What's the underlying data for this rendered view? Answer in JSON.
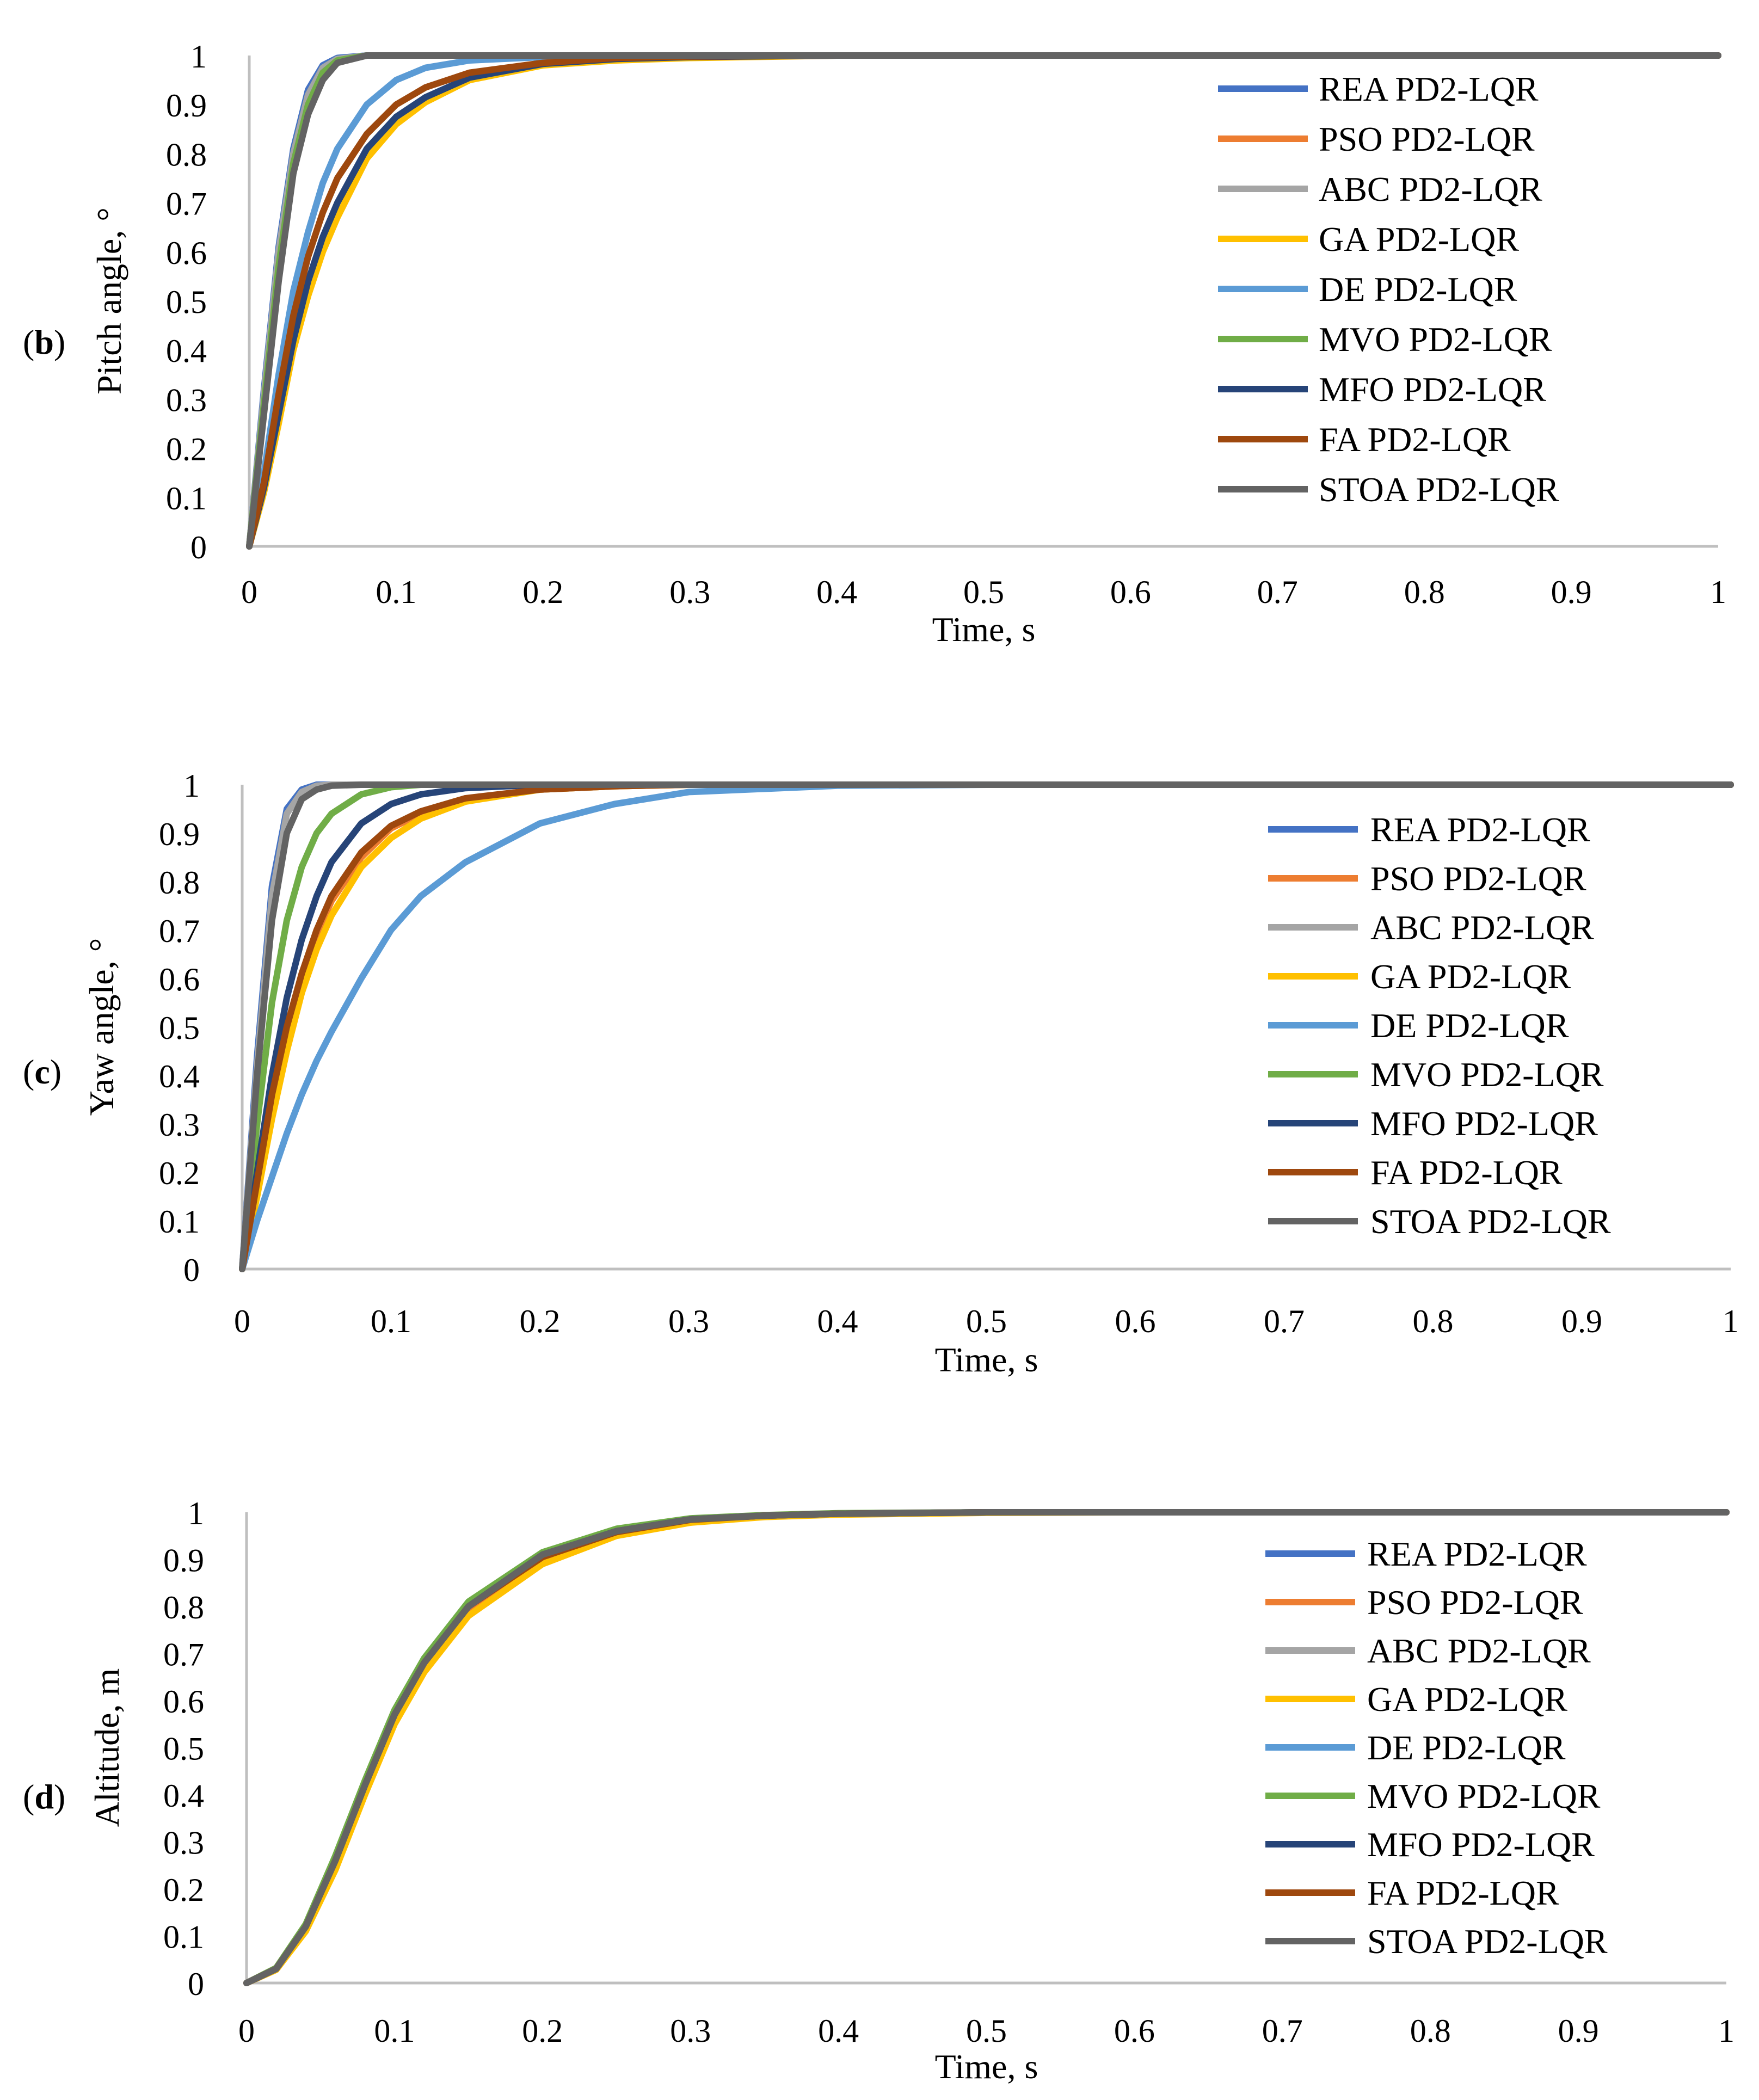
{
  "figure": {
    "panels": [
      {
        "open": "(",
        "letter": "b",
        "close": ")"
      },
      {
        "open": "(",
        "letter": "c",
        "close": ")"
      },
      {
        "open": "(",
        "letter": "d",
        "close": ")"
      }
    ]
  },
  "chart_data": [
    {
      "type": "line",
      "title": "",
      "xlabel": "Time, s",
      "ylabel": "Pitch angle, °",
      "xlim": [
        0,
        1
      ],
      "ylim": [
        0,
        1
      ],
      "x_ticks": [
        "0",
        "0.1",
        "0.2",
        "0.3",
        "0.4",
        "0.5",
        "0.6",
        "0.7",
        "0.8",
        "0.9",
        "1"
      ],
      "y_ticks": [
        "0",
        "0.1",
        "0.2",
        "0.3",
        "0.4",
        "0.5",
        "0.6",
        "0.7",
        "0.8",
        "0.9",
        "1"
      ],
      "legend_position": "right",
      "x": [
        0,
        0.01,
        0.02,
        0.03,
        0.04,
        0.05,
        0.06,
        0.08,
        0.1,
        0.12,
        0.15,
        0.2,
        0.25,
        0.3,
        0.4,
        0.5,
        0.6,
        0.7,
        0.8,
        0.9,
        1
      ],
      "series": [
        {
          "name": "REA PD2-LQR",
          "color": "#4472c4",
          "values": [
            0,
            0.32,
            0.61,
            0.81,
            0.93,
            0.98,
            0.995,
            1,
            1,
            1,
            1,
            1,
            1,
            1,
            1,
            1,
            1,
            1,
            1,
            1,
            1
          ]
        },
        {
          "name": "PSO PD2-LQR",
          "color": "#ed7d31",
          "values": [
            0,
            0.3,
            0.58,
            0.79,
            0.91,
            0.97,
            0.99,
            1,
            1,
            1,
            1,
            1,
            1,
            1,
            1,
            1,
            1,
            1,
            1,
            1,
            1
          ]
        },
        {
          "name": "ABC PD2-LQR",
          "color": "#a5a5a5",
          "values": [
            0,
            0.31,
            0.6,
            0.8,
            0.92,
            0.975,
            0.993,
            1,
            1,
            1,
            1,
            1,
            1,
            1,
            1,
            1,
            1,
            1,
            1,
            1,
            1
          ]
        },
        {
          "name": "GA PD2-LQR",
          "color": "#ffc000",
          "values": [
            0,
            0.11,
            0.25,
            0.4,
            0.51,
            0.6,
            0.67,
            0.79,
            0.86,
            0.905,
            0.95,
            0.98,
            0.99,
            0.995,
            1,
            1,
            1,
            1,
            1,
            1,
            1
          ]
        },
        {
          "name": "DE PD2-LQR",
          "color": "#5b9bd5",
          "values": [
            0,
            0.15,
            0.35,
            0.52,
            0.64,
            0.74,
            0.81,
            0.9,
            0.95,
            0.975,
            0.99,
            0.997,
            1,
            1,
            1,
            1,
            1,
            1,
            1,
            1,
            1
          ]
        },
        {
          "name": "MVO PD2-LQR",
          "color": "#70ad47",
          "values": [
            0,
            0.29,
            0.57,
            0.78,
            0.9,
            0.965,
            0.99,
            1,
            1,
            1,
            1,
            1,
            1,
            1,
            1,
            1,
            1,
            1,
            1,
            1,
            1
          ]
        },
        {
          "name": "MFO PD2-LQR",
          "color": "#264478",
          "values": [
            0,
            0.12,
            0.27,
            0.42,
            0.54,
            0.63,
            0.7,
            0.81,
            0.875,
            0.915,
            0.955,
            0.983,
            0.993,
            0.997,
            1,
            1,
            1,
            1,
            1,
            1,
            1
          ]
        },
        {
          "name": "FA PD2-LQR",
          "color": "#9e480e",
          "values": [
            0,
            0.13,
            0.31,
            0.47,
            0.59,
            0.68,
            0.75,
            0.84,
            0.9,
            0.935,
            0.965,
            0.985,
            0.995,
            0.998,
            1,
            1,
            1,
            1,
            1,
            1,
            1
          ]
        },
        {
          "name": "STOA PD2-LQR",
          "color": "#636363",
          "values": [
            0,
            0.27,
            0.54,
            0.76,
            0.88,
            0.95,
            0.985,
            1,
            1,
            1,
            1,
            1,
            1,
            1,
            1,
            1,
            1,
            1,
            1,
            1,
            1
          ]
        }
      ]
    },
    {
      "type": "line",
      "title": "",
      "xlabel": "Time, s",
      "ylabel": "Yaw angle, °",
      "xlim": [
        0,
        1
      ],
      "ylim": [
        0,
        1
      ],
      "x_ticks": [
        "0",
        "0.1",
        "0.2",
        "0.3",
        "0.4",
        "0.5",
        "0.6",
        "0.7",
        "0.8",
        "0.9",
        "1"
      ],
      "y_ticks": [
        "0",
        "0.1",
        "0.2",
        "0.3",
        "0.4",
        "0.5",
        "0.6",
        "0.7",
        "0.8",
        "0.9",
        "1"
      ],
      "legend_position": "right",
      "x": [
        0,
        0.01,
        0.02,
        0.03,
        0.04,
        0.05,
        0.06,
        0.08,
        0.1,
        0.12,
        0.15,
        0.2,
        0.25,
        0.3,
        0.4,
        0.5,
        0.6,
        0.7,
        0.8,
        0.9,
        1
      ],
      "series": [
        {
          "name": "REA PD2-LQR",
          "color": "#4472c4",
          "values": [
            0,
            0.44,
            0.79,
            0.95,
            0.99,
            1,
            1,
            1,
            1,
            1,
            1,
            1,
            1,
            1,
            1,
            1,
            1,
            1,
            1,
            1,
            1
          ]
        },
        {
          "name": "PSO PD2-LQR",
          "color": "#ed7d31",
          "values": [
            0,
            0.17,
            0.35,
            0.49,
            0.6,
            0.69,
            0.76,
            0.85,
            0.91,
            0.94,
            0.97,
            0.99,
            0.997,
            1,
            1,
            1,
            1,
            1,
            1,
            1,
            1
          ]
        },
        {
          "name": "ABC PD2-LQR",
          "color": "#a5a5a5",
          "values": [
            0,
            0.42,
            0.77,
            0.94,
            0.985,
            0.998,
            1,
            1,
            1,
            1,
            1,
            1,
            1,
            1,
            1,
            1,
            1,
            1,
            1,
            1,
            1
          ]
        },
        {
          "name": "GA PD2-LQR",
          "color": "#ffc000",
          "values": [
            0,
            0.15,
            0.31,
            0.45,
            0.57,
            0.66,
            0.73,
            0.83,
            0.89,
            0.93,
            0.965,
            0.99,
            0.997,
            1,
            1,
            1,
            1,
            1,
            1,
            1,
            1
          ]
        },
        {
          "name": "DE PD2-LQR",
          "color": "#5b9bd5",
          "values": [
            0,
            0.1,
            0.19,
            0.28,
            0.36,
            0.43,
            0.49,
            0.6,
            0.7,
            0.77,
            0.84,
            0.92,
            0.96,
            0.985,
            0.998,
            1,
            1,
            1,
            1,
            1,
            1
          ]
        },
        {
          "name": "MVO PD2-LQR",
          "color": "#70ad47",
          "values": [
            0,
            0.3,
            0.55,
            0.72,
            0.83,
            0.9,
            0.94,
            0.98,
            0.995,
            1,
            1,
            1,
            1,
            1,
            1,
            1,
            1,
            1,
            1,
            1,
            1
          ]
        },
        {
          "name": "MFO PD2-LQR",
          "color": "#264478",
          "values": [
            0,
            0.2,
            0.4,
            0.56,
            0.68,
            0.77,
            0.84,
            0.92,
            0.96,
            0.98,
            0.993,
            1,
            1,
            1,
            1,
            1,
            1,
            1,
            1,
            1,
            1
          ]
        },
        {
          "name": "FA PD2-LQR",
          "color": "#9e480e",
          "values": [
            0,
            0.18,
            0.36,
            0.5,
            0.61,
            0.7,
            0.77,
            0.86,
            0.915,
            0.945,
            0.972,
            0.99,
            0.997,
            1,
            1,
            1,
            1,
            1,
            1,
            1,
            1
          ]
        },
        {
          "name": "STOA PD2-LQR",
          "color": "#636363",
          "values": [
            0,
            0.4,
            0.72,
            0.9,
            0.97,
            0.99,
            0.998,
            1,
            1,
            1,
            1,
            1,
            1,
            1,
            1,
            1,
            1,
            1,
            1,
            1,
            1
          ]
        }
      ]
    },
    {
      "type": "line",
      "title": "",
      "xlabel": "Time, s",
      "ylabel": "Altitude, m",
      "xlim": [
        0,
        1
      ],
      "ylim": [
        0,
        1
      ],
      "x_ticks": [
        "0",
        "0.1",
        "0.2",
        "0.3",
        "0.4",
        "0.5",
        "0.6",
        "0.7",
        "0.8",
        "0.9",
        "1"
      ],
      "y_ticks": [
        "0",
        "0.1",
        "0.2",
        "0.3",
        "0.4",
        "0.5",
        "0.6",
        "0.7",
        "0.8",
        "0.9",
        "1"
      ],
      "legend_position": "right",
      "x": [
        0,
        0.02,
        0.04,
        0.06,
        0.08,
        0.1,
        0.12,
        0.15,
        0.2,
        0.25,
        0.3,
        0.35,
        0.4,
        0.5,
        0.6,
        0.7,
        0.8,
        0.9,
        1
      ],
      "series": [
        {
          "name": "REA PD2-LQR",
          "color": "#4472c4",
          "values": [
            0,
            0.03,
            0.12,
            0.26,
            0.42,
            0.57,
            0.68,
            0.8,
            0.91,
            0.96,
            0.985,
            0.993,
            0.997,
            1,
            1,
            1,
            1,
            1,
            1
          ]
        },
        {
          "name": "PSO PD2-LQR",
          "color": "#ed7d31",
          "values": [
            0,
            0.03,
            0.115,
            0.25,
            0.41,
            0.56,
            0.67,
            0.79,
            0.9,
            0.955,
            0.982,
            0.992,
            0.996,
            1,
            1,
            1,
            1,
            1,
            1
          ]
        },
        {
          "name": "ABC PD2-LQR",
          "color": "#a5a5a5",
          "values": [
            0,
            0.03,
            0.12,
            0.26,
            0.42,
            0.57,
            0.68,
            0.8,
            0.91,
            0.96,
            0.985,
            0.993,
            0.997,
            1,
            1,
            1,
            1,
            1,
            1
          ]
        },
        {
          "name": "GA PD2-LQR",
          "color": "#ffc000",
          "values": [
            0,
            0.028,
            0.11,
            0.24,
            0.4,
            0.55,
            0.66,
            0.78,
            0.89,
            0.95,
            0.978,
            0.99,
            0.995,
            0.999,
            1,
            1,
            1,
            1,
            1
          ]
        },
        {
          "name": "DE PD2-LQR",
          "color": "#5b9bd5",
          "values": [
            0,
            0.03,
            0.12,
            0.26,
            0.42,
            0.57,
            0.68,
            0.8,
            0.91,
            0.96,
            0.985,
            0.993,
            0.997,
            1,
            1,
            1,
            1,
            1,
            1
          ]
        },
        {
          "name": "MVO PD2-LQR",
          "color": "#70ad47",
          "values": [
            0,
            0.032,
            0.125,
            0.27,
            0.43,
            0.58,
            0.69,
            0.81,
            0.915,
            0.965,
            0.987,
            0.994,
            0.998,
            1,
            1,
            1,
            1,
            1,
            1
          ]
        },
        {
          "name": "MFO PD2-LQR",
          "color": "#264478",
          "values": [
            0,
            0.03,
            0.12,
            0.26,
            0.42,
            0.57,
            0.68,
            0.8,
            0.91,
            0.96,
            0.985,
            0.993,
            0.997,
            1,
            1,
            1,
            1,
            1,
            1
          ]
        },
        {
          "name": "FA PD2-LQR",
          "color": "#9e480e",
          "values": [
            0,
            0.03,
            0.12,
            0.26,
            0.42,
            0.57,
            0.68,
            0.8,
            0.905,
            0.958,
            0.984,
            0.993,
            0.997,
            1,
            1,
            1,
            1,
            1,
            1
          ]
        },
        {
          "name": "STOA PD2-LQR",
          "color": "#636363",
          "values": [
            0,
            0.03,
            0.12,
            0.26,
            0.42,
            0.57,
            0.68,
            0.8,
            0.91,
            0.96,
            0.985,
            0.993,
            0.997,
            1,
            1,
            1,
            1,
            1,
            1
          ]
        }
      ]
    }
  ]
}
